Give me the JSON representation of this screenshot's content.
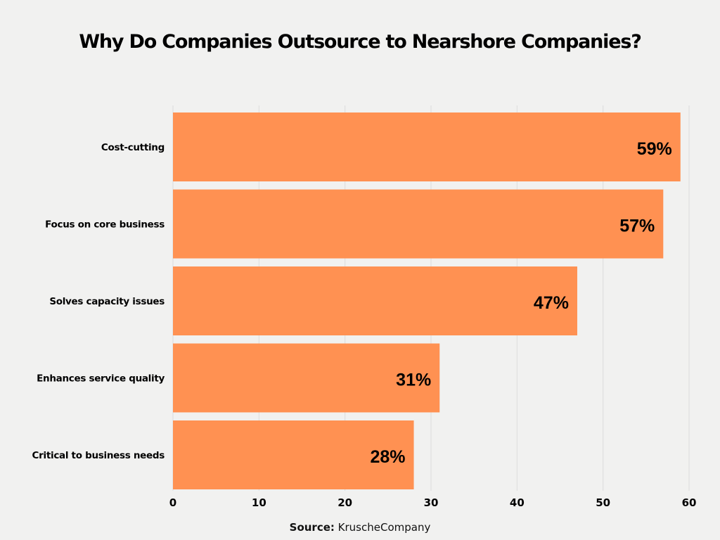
{
  "chart_data": {
    "type": "bar",
    "orientation": "horizontal",
    "title": "Why Do Companies Outsource to Nearshore Companies?",
    "categories": [
      "Cost-cutting",
      "Focus on core business",
      "Solves capacity issues",
      "Enhances service quality",
      "Critical to business needs"
    ],
    "values": [
      59,
      57,
      47,
      31,
      28
    ],
    "data_labels": [
      "59%",
      "57%",
      "47%",
      "31%",
      "28%"
    ],
    "xlim": [
      0,
      60
    ],
    "xticks": [
      0,
      10,
      20,
      30,
      40,
      50,
      60
    ],
    "grid": true,
    "bar_color": "#ff9152"
  },
  "source": {
    "label": "Source:",
    "value": "KruscheCompany"
  }
}
